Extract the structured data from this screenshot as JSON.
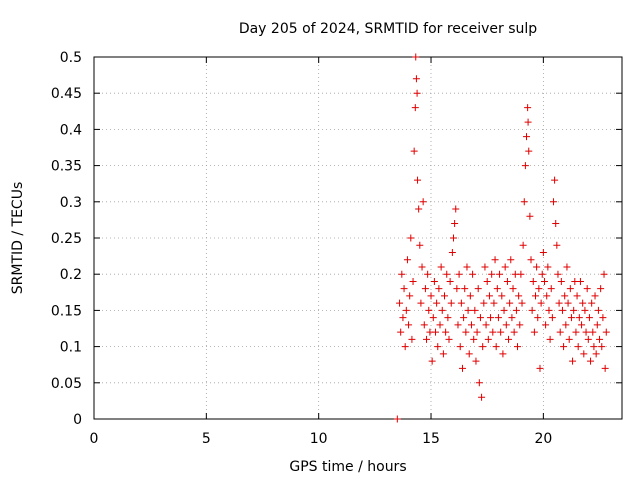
{
  "chart_data": {
    "type": "scatter",
    "title": "Day 205 of 2024, SRMTID for receiver sulp",
    "xlabel": "GPS time / hours",
    "ylabel": "SRMTID / TECUs",
    "xlim": [
      0,
      23.5
    ],
    "ylim": [
      0,
      0.5
    ],
    "xticks": [
      "0",
      "5",
      "10",
      "15",
      "20"
    ],
    "yticks": [
      "0",
      "0.05",
      "0.1",
      "0.15",
      "0.2",
      "0.25",
      "0.3",
      "0.35",
      "0.4",
      "0.45",
      "0.5"
    ],
    "grid": true,
    "marker": "plus",
    "color": "#e00000",
    "series": [
      {
        "values": [
          [
            13.5,
            0.0
          ],
          [
            13.6,
            0.16
          ],
          [
            13.65,
            0.12
          ],
          [
            13.7,
            0.2
          ],
          [
            13.75,
            0.14
          ],
          [
            13.8,
            0.18
          ],
          [
            13.85,
            0.1
          ],
          [
            13.9,
            0.15
          ],
          [
            13.95,
            0.22
          ],
          [
            14.0,
            0.13
          ],
          [
            14.05,
            0.17
          ],
          [
            14.1,
            0.25
          ],
          [
            14.15,
            0.11
          ],
          [
            14.2,
            0.19
          ],
          [
            14.25,
            0.37
          ],
          [
            14.3,
            0.43
          ],
          [
            14.32,
            0.5
          ],
          [
            14.35,
            0.47
          ],
          [
            14.38,
            0.45
          ],
          [
            14.4,
            0.33
          ],
          [
            14.45,
            0.29
          ],
          [
            14.5,
            0.24
          ],
          [
            14.55,
            0.16
          ],
          [
            14.6,
            0.21
          ],
          [
            14.65,
            0.3
          ],
          [
            14.7,
            0.13
          ],
          [
            14.75,
            0.18
          ],
          [
            14.8,
            0.11
          ],
          [
            14.85,
            0.2
          ],
          [
            14.9,
            0.15
          ],
          [
            14.95,
            0.12
          ],
          [
            15.0,
            0.17
          ],
          [
            15.05,
            0.08
          ],
          [
            15.1,
            0.14
          ],
          [
            15.15,
            0.19
          ],
          [
            15.2,
            0.12
          ],
          [
            15.25,
            0.16
          ],
          [
            15.3,
            0.1
          ],
          [
            15.35,
            0.18
          ],
          [
            15.4,
            0.13
          ],
          [
            15.45,
            0.21
          ],
          [
            15.5,
            0.15
          ],
          [
            15.55,
            0.09
          ],
          [
            15.6,
            0.17
          ],
          [
            15.65,
            0.12
          ],
          [
            15.7,
            0.2
          ],
          [
            15.75,
            0.14
          ],
          [
            15.8,
            0.11
          ],
          [
            15.85,
            0.19
          ],
          [
            15.9,
            0.16
          ],
          [
            15.95,
            0.23
          ],
          [
            16.0,
            0.25
          ],
          [
            16.05,
            0.27
          ],
          [
            16.1,
            0.29
          ],
          [
            16.15,
            0.18
          ],
          [
            16.2,
            0.13
          ],
          [
            16.25,
            0.2
          ],
          [
            16.3,
            0.1
          ],
          [
            16.35,
            0.16
          ],
          [
            16.4,
            0.07
          ],
          [
            16.45,
            0.14
          ],
          [
            16.5,
            0.18
          ],
          [
            16.55,
            0.12
          ],
          [
            16.6,
            0.21
          ],
          [
            16.65,
            0.15
          ],
          [
            16.7,
            0.09
          ],
          [
            16.75,
            0.17
          ],
          [
            16.8,
            0.13
          ],
          [
            16.85,
            0.2
          ],
          [
            16.9,
            0.11
          ],
          [
            16.95,
            0.15
          ],
          [
            17.0,
            0.08
          ],
          [
            17.05,
            0.12
          ],
          [
            17.1,
            0.18
          ],
          [
            17.15,
            0.05
          ],
          [
            17.2,
            0.14
          ],
          [
            17.25,
            0.03
          ],
          [
            17.3,
            0.1
          ],
          [
            17.35,
            0.16
          ],
          [
            17.4,
            0.21
          ],
          [
            17.45,
            0.13
          ],
          [
            17.5,
            0.19
          ],
          [
            17.55,
            0.11
          ],
          [
            17.6,
            0.17
          ],
          [
            17.65,
            0.14
          ],
          [
            17.7,
            0.2
          ],
          [
            17.75,
            0.12
          ],
          [
            17.8,
            0.16
          ],
          [
            17.85,
            0.22
          ],
          [
            17.9,
            0.1
          ],
          [
            17.95,
            0.18
          ],
          [
            18.0,
            0.14
          ],
          [
            18.05,
            0.2
          ],
          [
            18.1,
            0.12
          ],
          [
            18.15,
            0.17
          ],
          [
            18.2,
            0.09
          ],
          [
            18.25,
            0.15
          ],
          [
            18.3,
            0.21
          ],
          [
            18.35,
            0.13
          ],
          [
            18.4,
            0.19
          ],
          [
            18.45,
            0.11
          ],
          [
            18.5,
            0.16
          ],
          [
            18.55,
            0.22
          ],
          [
            18.6,
            0.14
          ],
          [
            18.65,
            0.18
          ],
          [
            18.7,
            0.12
          ],
          [
            18.75,
            0.2
          ],
          [
            18.8,
            0.15
          ],
          [
            18.85,
            0.1
          ],
          [
            18.9,
            0.17
          ],
          [
            18.95,
            0.13
          ],
          [
            19.0,
            0.2
          ],
          [
            19.05,
            0.16
          ],
          [
            19.1,
            0.24
          ],
          [
            19.15,
            0.3
          ],
          [
            19.2,
            0.35
          ],
          [
            19.25,
            0.39
          ],
          [
            19.3,
            0.43
          ],
          [
            19.32,
            0.41
          ],
          [
            19.35,
            0.37
          ],
          [
            19.4,
            0.28
          ],
          [
            19.45,
            0.22
          ],
          [
            19.5,
            0.15
          ],
          [
            19.55,
            0.19
          ],
          [
            19.6,
            0.12
          ],
          [
            19.65,
            0.17
          ],
          [
            19.7,
            0.21
          ],
          [
            19.75,
            0.14
          ],
          [
            19.8,
            0.18
          ],
          [
            19.85,
            0.07
          ],
          [
            19.9,
            0.16
          ],
          [
            19.95,
            0.2
          ],
          [
            20.0,
            0.23
          ],
          [
            20.05,
            0.19
          ],
          [
            20.1,
            0.13
          ],
          [
            20.15,
            0.17
          ],
          [
            20.2,
            0.21
          ],
          [
            20.25,
            0.15
          ],
          [
            20.3,
            0.11
          ],
          [
            20.35,
            0.18
          ],
          [
            20.4,
            0.14
          ],
          [
            20.45,
            0.3
          ],
          [
            20.5,
            0.33
          ],
          [
            20.55,
            0.27
          ],
          [
            20.6,
            0.24
          ],
          [
            20.65,
            0.2
          ],
          [
            20.7,
            0.16
          ],
          [
            20.75,
            0.12
          ],
          [
            20.8,
            0.19
          ],
          [
            20.85,
            0.15
          ],
          [
            20.9,
            0.1
          ],
          [
            20.95,
            0.17
          ],
          [
            21.0,
            0.13
          ],
          [
            21.05,
            0.21
          ],
          [
            21.1,
            0.16
          ],
          [
            21.15,
            0.11
          ],
          [
            21.2,
            0.18
          ],
          [
            21.25,
            0.14
          ],
          [
            21.3,
            0.08
          ],
          [
            21.35,
            0.15
          ],
          [
            21.4,
            0.19
          ],
          [
            21.45,
            0.12
          ],
          [
            21.5,
            0.17
          ],
          [
            21.55,
            0.1
          ],
          [
            21.6,
            0.14
          ],
          [
            21.65,
            0.19
          ],
          [
            21.7,
            0.13
          ],
          [
            21.75,
            0.16
          ],
          [
            21.8,
            0.09
          ],
          [
            21.85,
            0.15
          ],
          [
            21.9,
            0.12
          ],
          [
            21.95,
            0.18
          ],
          [
            22.0,
            0.11
          ],
          [
            22.05,
            0.14
          ],
          [
            22.1,
            0.08
          ],
          [
            22.15,
            0.16
          ],
          [
            22.2,
            0.12
          ],
          [
            22.25,
            0.1
          ],
          [
            22.3,
            0.17
          ],
          [
            22.35,
            0.09
          ],
          [
            22.4,
            0.13
          ],
          [
            22.45,
            0.15
          ],
          [
            22.5,
            0.11
          ],
          [
            22.55,
            0.18
          ],
          [
            22.6,
            0.1
          ],
          [
            22.65,
            0.14
          ],
          [
            22.7,
            0.2
          ],
          [
            22.75,
            0.07
          ],
          [
            22.8,
            0.12
          ]
        ]
      }
    ]
  }
}
